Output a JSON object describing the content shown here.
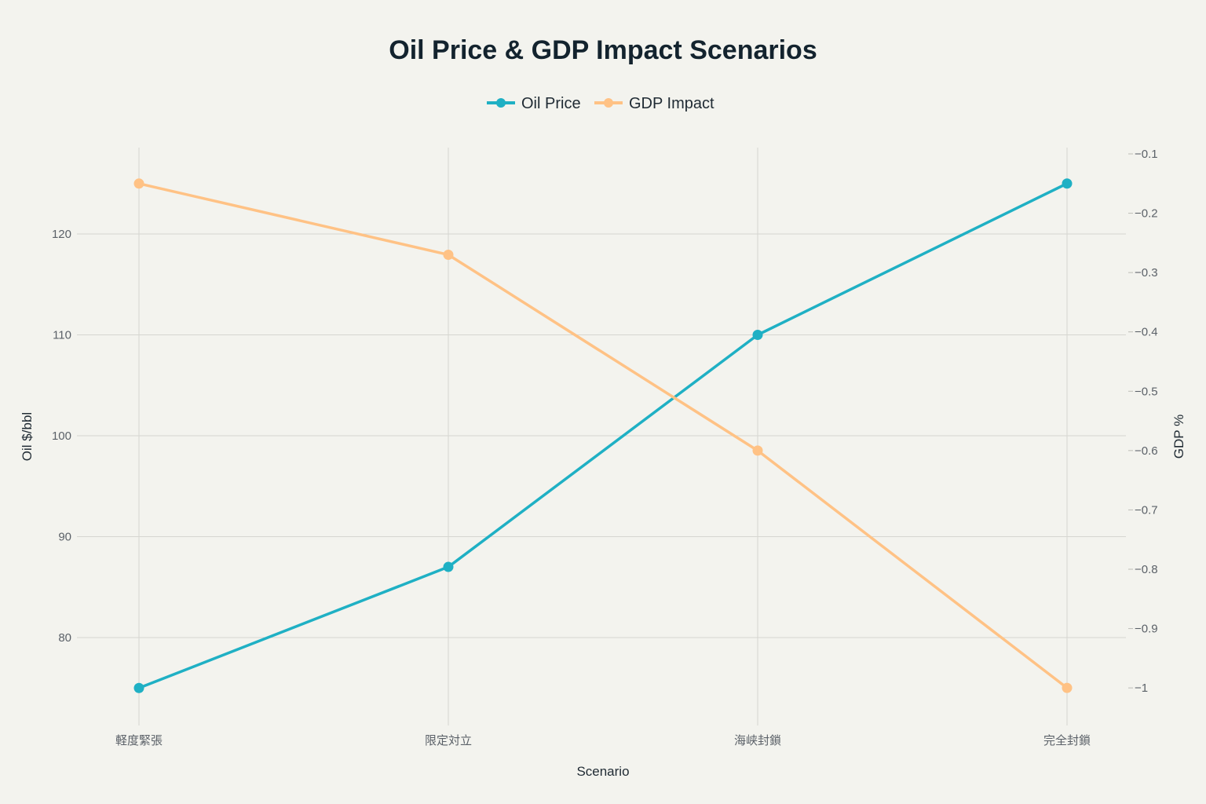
{
  "chart_data": {
    "type": "line",
    "title": "Oil Price & GDP Impact Scenarios",
    "xlabel": "Scenario",
    "ylabel": "Oil $/bbl",
    "y2label": "GDP %",
    "categories": [
      "軽度緊張",
      "限定対立",
      "海峡封鎖",
      "完全封鎖"
    ],
    "series": [
      {
        "name": "Oil Price",
        "axis": "left",
        "color": "#1fb0c4",
        "values": [
          75,
          87,
          110,
          125
        ]
      },
      {
        "name": "GDP Impact",
        "axis": "right",
        "color": "#ffc285",
        "values": [
          -0.15,
          -0.27,
          -0.6,
          -1
        ]
      }
    ],
    "y_ticks": [
      80,
      90,
      100,
      110,
      120
    ],
    "y2_ticks": [
      -0.1,
      -0.2,
      -0.3,
      -0.4,
      -0.5,
      -0.6,
      -0.7,
      -0.8,
      -0.9,
      -1
    ],
    "y2_tick_labels": [
      "−0.1",
      "−0.2",
      "−0.3",
      "−0.4",
      "−0.5",
      "−0.6",
      "−0.7",
      "−0.8",
      "−0.9",
      "−1"
    ],
    "grid": true,
    "legend_position": "top-center"
  }
}
